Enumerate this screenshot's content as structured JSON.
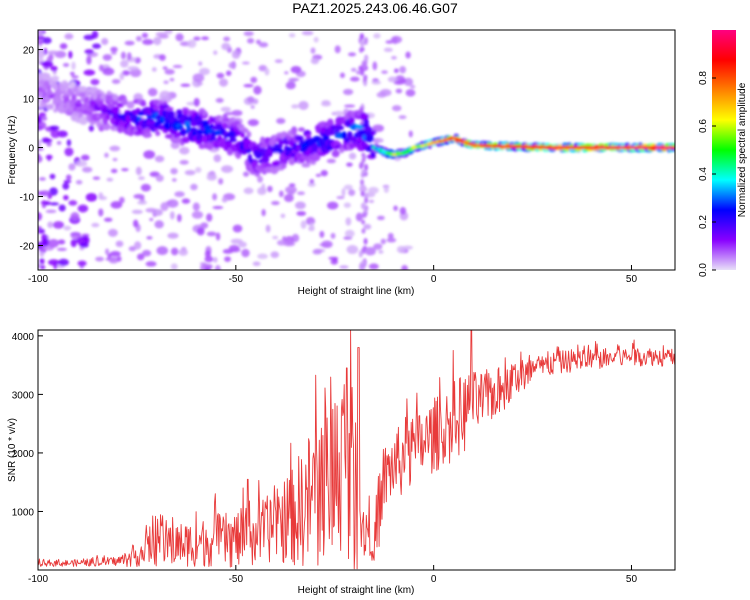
{
  "figure_title": "PAZ1.2025.243.06.46.G07",
  "chart_data": [
    {
      "type": "heatmap",
      "xlabel": "Height of straight line (km)",
      "ylabel": "Frequency (Hz)",
      "xlim": [
        -100,
        61
      ],
      "ylim": [
        -25,
        24
      ],
      "x_ticks": [
        -100,
        -50,
        0,
        50
      ],
      "y_ticks": [
        -20,
        -10,
        0,
        10,
        20
      ],
      "x_tick_labels": [
        "-100",
        "-50",
        "0",
        "50"
      ],
      "y_tick_labels": [
        "-20",
        "-10",
        "0",
        "10",
        "20"
      ],
      "colorbar": {
        "label": "Normalized spectral amplitude",
        "range": [
          0.0,
          1.0
        ],
        "ticks": [
          0.0,
          0.2,
          0.4,
          0.6,
          0.8
        ],
        "tick_labels": [
          "0.0",
          "0.2",
          "0.4",
          "0.6",
          "0.8"
        ],
        "colormap": [
          "#e8e0f8",
          "#8800ff",
          "#0000ff",
          "#00ffff",
          "#00ff00",
          "#ffff00",
          "#ff8000",
          "#ff0000",
          "#ff0080"
        ]
      },
      "ridge": {
        "x": [
          -100,
          -90,
          -85,
          -80,
          -75,
          -70,
          -65,
          -60,
          -55,
          -50,
          -45,
          -40,
          -35,
          -30,
          -25,
          -20,
          -17,
          -15,
          -12,
          -10,
          -7,
          -5,
          -2,
          0,
          3,
          5,
          8,
          10,
          15,
          20,
          30,
          40,
          50,
          61
        ],
        "freq": [
          12,
          9,
          8,
          7,
          6,
          6,
          5,
          4,
          3,
          2,
          -2,
          -1,
          0,
          1,
          2,
          4,
          3,
          0,
          -1,
          -1.5,
          -1,
          0,
          0.5,
          1,
          1.5,
          2,
          1,
          0.5,
          0.3,
          0.2,
          0,
          0,
          0,
          0
        ],
        "amp": [
          0.08,
          0.1,
          0.12,
          0.2,
          0.25,
          0.28,
          0.3,
          0.28,
          0.25,
          0.22,
          0.22,
          0.2,
          0.22,
          0.25,
          0.25,
          0.3,
          0.35,
          0.35,
          0.45,
          0.6,
          0.5,
          0.55,
          0.6,
          0.7,
          0.75,
          0.8,
          0.8,
          0.8,
          0.82,
          0.85,
          0.88,
          0.9,
          0.92,
          0.95
        ]
      }
    },
    {
      "type": "line",
      "series": [
        {
          "name": "SNR",
          "color": "#e83a3a"
        }
      ],
      "xlabel": "Height of straight line (km)",
      "ylabel": "SNR (10 * v/v)",
      "xlim": [
        -100,
        61
      ],
      "ylim": [
        0,
        4100
      ],
      "x_ticks": [
        -100,
        -50,
        0,
        50
      ],
      "y_ticks": [
        1000,
        2000,
        3000,
        4000
      ],
      "x_tick_labels": [
        "-100",
        "-50",
        "0",
        "50"
      ],
      "y_tick_labels": [
        "1000",
        "2000",
        "3000",
        "4000"
      ],
      "envelope": {
        "x": [
          -100,
          -90,
          -80,
          -77,
          -70,
          -60,
          -55,
          -50,
          -45,
          -40,
          -35,
          -30,
          -25,
          -22,
          -20,
          -19,
          -17,
          -15,
          -14,
          -13,
          -10,
          -7,
          -5,
          -3,
          0,
          3,
          5,
          8,
          10,
          12,
          15,
          18,
          20,
          25,
          30,
          35,
          40,
          45,
          50,
          55,
          61
        ],
        "center": [
          110,
          120,
          150,
          200,
          420,
          450,
          500,
          520,
          600,
          750,
          950,
          1300,
          1700,
          2000,
          1300,
          900,
          700,
          450,
          600,
          1500,
          1800,
          1900,
          2050,
          2150,
          2300,
          2400,
          2550,
          2700,
          2800,
          2900,
          3000,
          3100,
          3250,
          3400,
          3520,
          3580,
          3600,
          3620,
          3650,
          3650,
          3620
        ],
        "spread": [
          50,
          60,
          80,
          150,
          350,
          400,
          450,
          500,
          550,
          600,
          900,
          1300,
          1500,
          1700,
          1500,
          800,
          500,
          300,
          700,
          600,
          600,
          650,
          650,
          600,
          650,
          650,
          700,
          700,
          600,
          500,
          450,
          400,
          350,
          250,
          200,
          200,
          180,
          180,
          170,
          160,
          160
        ]
      },
      "peaks": [
        {
          "x": -47,
          "y": 1550
        },
        {
          "x": -22,
          "y": 3450
        },
        {
          "x": -19,
          "y": 3800
        },
        {
          "x": 9.5,
          "y": 4100
        }
      ]
    }
  ]
}
